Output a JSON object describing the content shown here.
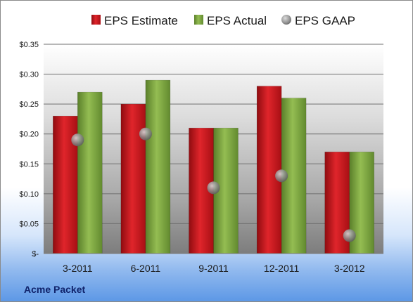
{
  "company": "Acme Packet",
  "chart_data": {
    "type": "bar",
    "categories": [
      "3-2011",
      "6-2011",
      "9-2011",
      "12-2011",
      "3-2012"
    ],
    "series": [
      {
        "name": "EPS Estimate",
        "kind": "bar",
        "color": "#c4161c",
        "values": [
          0.23,
          0.25,
          0.21,
          0.28,
          0.17
        ]
      },
      {
        "name": "EPS Actual",
        "kind": "bar",
        "color": "#77a03a",
        "values": [
          0.27,
          0.29,
          0.21,
          0.26,
          0.17
        ]
      },
      {
        "name": "EPS GAAP",
        "kind": "marker",
        "color": "#8c8c8c",
        "values": [
          0.19,
          0.2,
          0.11,
          0.13,
          0.03
        ]
      }
    ],
    "yticks": [
      {
        "value": 0,
        "label": "$-"
      },
      {
        "value": 0.05,
        "label": "$0.05"
      },
      {
        "value": 0.1,
        "label": "$0.10"
      },
      {
        "value": 0.15,
        "label": "$0.15"
      },
      {
        "value": 0.2,
        "label": "$0.20"
      },
      {
        "value": 0.25,
        "label": "$0.25"
      },
      {
        "value": 0.3,
        "label": "$0.30"
      },
      {
        "value": 0.35,
        "label": "$0.35"
      }
    ],
    "ylim": [
      0,
      0.35
    ],
    "grid": true,
    "legend_position": "top"
  }
}
